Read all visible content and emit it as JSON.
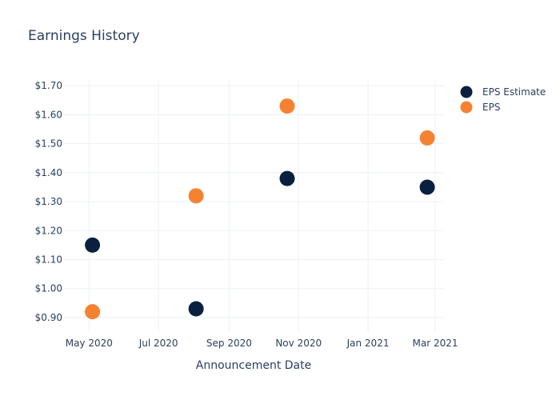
{
  "chart_data": {
    "type": "scatter",
    "title": "Earnings History",
    "xlabel": "Announcement Date",
    "ylabel": "",
    "x_ticks": [
      {
        "date": "2020-05-01",
        "label": "May 2020"
      },
      {
        "date": "2020-07-01",
        "label": "Jul 2020"
      },
      {
        "date": "2020-09-01",
        "label": "Sep 2020"
      },
      {
        "date": "2020-11-01",
        "label": "Nov 2020"
      },
      {
        "date": "2021-01-01",
        "label": "Jan 2021"
      },
      {
        "date": "2021-03-01",
        "label": "Mar 2021"
      }
    ],
    "y_ticks": [
      {
        "value": 0.9,
        "label": "$0.90"
      },
      {
        "value": 1.0,
        "label": "$1.00"
      },
      {
        "value": 1.1,
        "label": "$1.10"
      },
      {
        "value": 1.2,
        "label": "$1.20"
      },
      {
        "value": 1.3,
        "label": "$1.30"
      },
      {
        "value": 1.4,
        "label": "$1.40"
      },
      {
        "value": 1.5,
        "label": "$1.50"
      },
      {
        "value": 1.6,
        "label": "$1.60"
      },
      {
        "value": 1.7,
        "label": "$1.70"
      }
    ],
    "xlim": [
      "2020-04-09",
      "2021-03-08"
    ],
    "ylim": [
      0.85,
      1.72
    ],
    "grid": true,
    "legend_position": "top-right",
    "series": [
      {
        "name": "EPS Estimate",
        "color": "#0b1f3f",
        "points": [
          {
            "x": "2020-05-04",
            "y": 1.15
          },
          {
            "x": "2020-08-03",
            "y": 0.93
          },
          {
            "x": "2020-10-22",
            "y": 1.38
          },
          {
            "x": "2021-02-22",
            "y": 1.35
          }
        ]
      },
      {
        "name": "EPS",
        "color": "#f58232",
        "points": [
          {
            "x": "2020-05-04",
            "y": 0.92
          },
          {
            "x": "2020-08-03",
            "y": 1.32
          },
          {
            "x": "2020-10-22",
            "y": 1.63
          },
          {
            "x": "2021-02-22",
            "y": 1.52
          }
        ]
      }
    ]
  }
}
